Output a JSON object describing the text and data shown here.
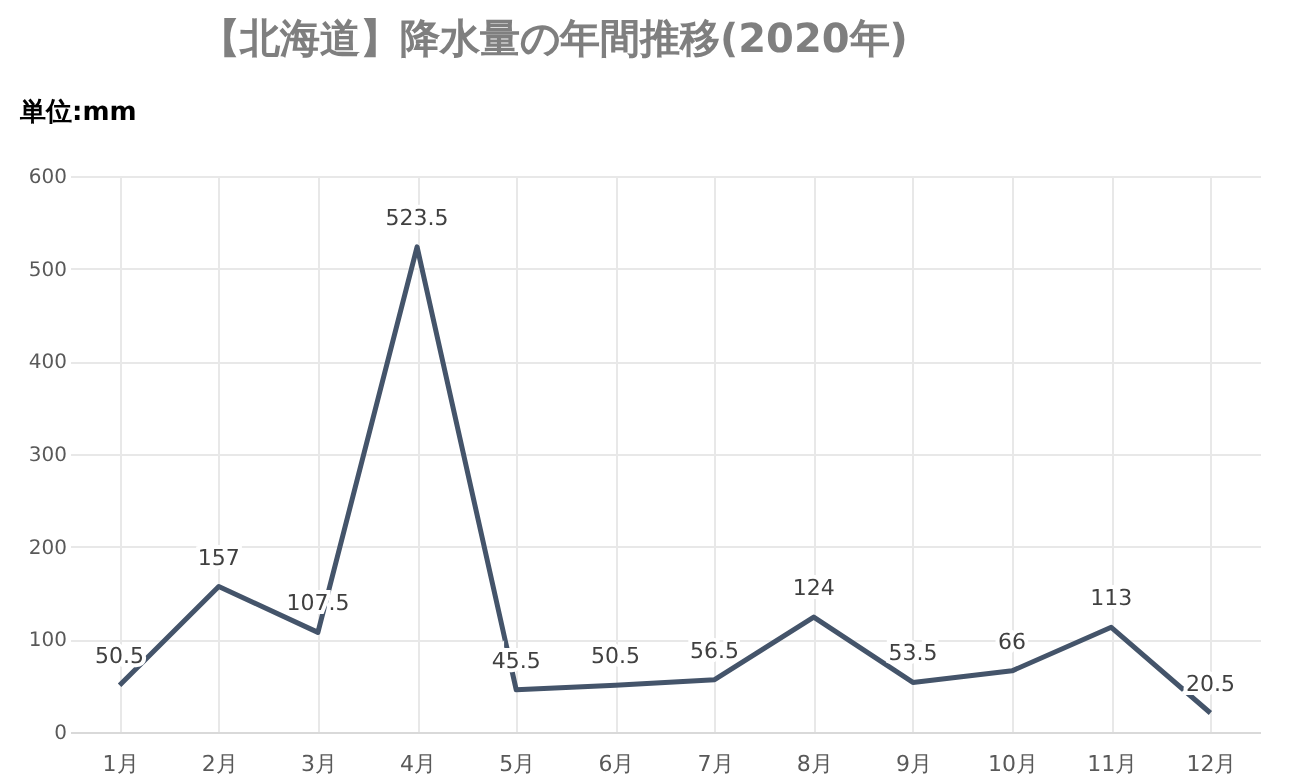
{
  "chart_data": {
    "type": "line",
    "title": "【北海道】降水量の年間推移(2020年)",
    "ylabel": "単位:mm",
    "categories": [
      "1月",
      "2月",
      "3月",
      "4月",
      "5月",
      "6月",
      "7月",
      "8月",
      "9月",
      "10月",
      "11月",
      "12月"
    ],
    "series": [
      {
        "color": "#44546a",
        "values": [
          50.5,
          157,
          107.5,
          523.5,
          45.5,
          50.5,
          56.5,
          124,
          53.5,
          66,
          113,
          20.5
        ]
      }
    ],
    "ylim": [
      0,
      600
    ],
    "yticks": [
      0,
      100,
      200,
      300,
      400,
      500,
      600
    ],
    "grid": true,
    "data_labels": true,
    "marker": "none",
    "line_style": "solid",
    "legend": false
  }
}
